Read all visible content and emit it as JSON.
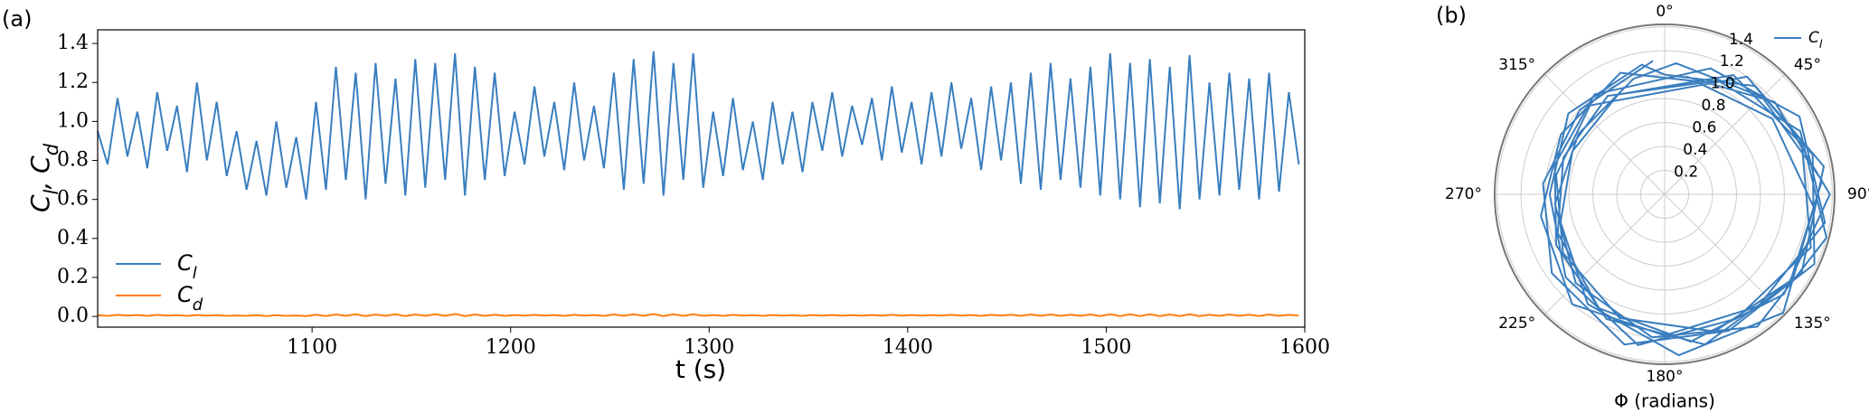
{
  "chart_data": [
    {
      "type": "line",
      "panel_label": "(a)",
      "xlabel": "t (s)",
      "ylabel": "C_l, C_d",
      "x": [
        992,
        997,
        1002,
        1007,
        1012,
        1017,
        1022,
        1027,
        1032,
        1037,
        1042,
        1047,
        1052,
        1057,
        1062,
        1067,
        1072,
        1077,
        1082,
        1087,
        1092,
        1097,
        1102,
        1107,
        1112,
        1117,
        1122,
        1127,
        1132,
        1137,
        1142,
        1147,
        1152,
        1157,
        1162,
        1167,
        1172,
        1177,
        1182,
        1187,
        1192,
        1197,
        1202,
        1207,
        1212,
        1217,
        1222,
        1227,
        1232,
        1237,
        1242,
        1247,
        1252,
        1257,
        1262,
        1267,
        1272,
        1277,
        1282,
        1287,
        1292,
        1297,
        1302,
        1307,
        1312,
        1317,
        1322,
        1327,
        1332,
        1337,
        1342,
        1347,
        1352,
        1357,
        1362,
        1367,
        1372,
        1377,
        1382,
        1387,
        1392,
        1397,
        1402,
        1407,
        1412,
        1417,
        1422,
        1427,
        1432,
        1437,
        1442,
        1447,
        1452,
        1457,
        1462,
        1467,
        1472,
        1477,
        1482,
        1487,
        1492,
        1497,
        1502,
        1507,
        1512,
        1517,
        1522,
        1527,
        1532,
        1537,
        1542,
        1547,
        1552,
        1557,
        1562,
        1567,
        1572,
        1577,
        1582,
        1587,
        1592,
        1597
      ],
      "series": [
        {
          "name": "C_l",
          "color": "#3a7ebf",
          "values": [
            0.95,
            0.78,
            1.12,
            0.82,
            1.05,
            0.76,
            1.15,
            0.85,
            1.08,
            0.74,
            1.2,
            0.8,
            1.1,
            0.72,
            0.95,
            0.65,
            0.9,
            0.62,
            1.0,
            0.66,
            0.92,
            0.6,
            1.1,
            0.65,
            1.28,
            0.7,
            1.25,
            0.6,
            1.3,
            0.68,
            1.22,
            0.62,
            1.32,
            0.66,
            1.3,
            0.7,
            1.35,
            0.62,
            1.28,
            0.7,
            1.25,
            0.72,
            1.05,
            0.78,
            1.18,
            0.82,
            1.1,
            0.75,
            1.2,
            0.8,
            1.08,
            0.76,
            1.25,
            0.65,
            1.32,
            0.68,
            1.36,
            0.62,
            1.3,
            0.7,
            1.35,
            0.66,
            1.05,
            0.72,
            1.12,
            0.75,
            1.0,
            0.7,
            1.1,
            0.78,
            1.05,
            0.74,
            1.1,
            0.85,
            1.15,
            0.82,
            1.08,
            0.88,
            1.12,
            0.8,
            1.18,
            0.84,
            1.1,
            0.78,
            1.15,
            0.82,
            1.2,
            0.86,
            1.12,
            0.75,
            1.18,
            0.8,
            1.2,
            0.68,
            1.25,
            0.65,
            1.3,
            0.7,
            1.22,
            0.66,
            1.28,
            0.62,
            1.35,
            0.6,
            1.3,
            0.56,
            1.32,
            0.58,
            1.28,
            0.55,
            1.34,
            0.6,
            1.2,
            0.62,
            1.25,
            0.65,
            1.22,
            0.6,
            1.25,
            0.64,
            1.15,
            0.78
          ]
        },
        {
          "name": "C_d",
          "color": "#ff7f0e",
          "values": [
            0.006,
            0.003,
            0.008,
            0.004,
            0.007,
            0.003,
            0.008,
            0.004,
            0.006,
            0.003,
            0.007,
            0.004,
            0.006,
            0.003,
            0.005,
            0.003,
            0.006,
            0.002,
            0.006,
            0.003,
            0.005,
            0.002,
            0.009,
            0.002,
            0.01,
            0.003,
            0.011,
            0.002,
            0.01,
            0.003,
            0.011,
            0.002,
            0.01,
            0.003,
            0.011,
            0.003,
            0.012,
            0.002,
            0.01,
            0.003,
            0.009,
            0.003,
            0.007,
            0.004,
            0.008,
            0.004,
            0.007,
            0.003,
            0.008,
            0.004,
            0.007,
            0.003,
            0.01,
            0.003,
            0.011,
            0.003,
            0.012,
            0.002,
            0.011,
            0.003,
            0.011,
            0.003,
            0.007,
            0.003,
            0.008,
            0.004,
            0.006,
            0.003,
            0.007,
            0.004,
            0.006,
            0.003,
            0.007,
            0.004,
            0.007,
            0.004,
            0.006,
            0.004,
            0.007,
            0.004,
            0.008,
            0.004,
            0.007,
            0.004,
            0.007,
            0.004,
            0.008,
            0.004,
            0.007,
            0.003,
            0.008,
            0.004,
            0.009,
            0.003,
            0.01,
            0.003,
            0.01,
            0.003,
            0.009,
            0.003,
            0.01,
            0.002,
            0.011,
            0.002,
            0.011,
            0.002,
            0.011,
            0.002,
            0.01,
            0.002,
            0.011,
            0.002,
            0.009,
            0.003,
            0.01,
            0.003,
            0.009,
            0.002,
            0.01,
            0.003,
            0.008,
            0.004
          ]
        }
      ],
      "xlim": [
        992,
        1600
      ],
      "xticks": [
        1100,
        1200,
        1300,
        1400,
        1500,
        1600
      ],
      "ylim": [
        -0.055,
        1.47
      ],
      "yticks": [
        {
          "value": 0,
          "label": "0.0"
        },
        0.2,
        0.4,
        0.6,
        0.8,
        {
          "value": 1,
          "label": "1.0"
        },
        1.2,
        1.4
      ],
      "grid": false,
      "legend": "lower left"
    },
    {
      "type": "polar",
      "panel_label": "(b)",
      "xlabel": "Φ (radians)",
      "theta": [
        10,
        50,
        90,
        130,
        170,
        210,
        250,
        290,
        330,
        25,
        65,
        105,
        145,
        185,
        225,
        265,
        305,
        345,
        5,
        45,
        85,
        125,
        165,
        205,
        245,
        285,
        325,
        20,
        60,
        100,
        140,
        180,
        220,
        260,
        300,
        340,
        15,
        55,
        95,
        135,
        175,
        215,
        255,
        295,
        335,
        30,
        70,
        110,
        150,
        190,
        230,
        270,
        310,
        350,
        0,
        40,
        80,
        120,
        160,
        200,
        240,
        280,
        320,
        35,
        75,
        115,
        155,
        195,
        235,
        275,
        315,
        355
      ],
      "series": [
        {
          "name": "C_l",
          "color": "#3a7ebf",
          "values": [
            1.0,
            1.2,
            1.38,
            1.3,
            1.25,
            1.1,
            0.95,
            0.9,
            0.95,
            1.05,
            1.25,
            1.4,
            1.35,
            1.2,
            1.05,
            0.92,
            0.88,
            1.0,
            1.1,
            1.15,
            1.32,
            1.28,
            1.3,
            1.15,
            1.0,
            0.95,
            1.02,
            1.12,
            1.3,
            1.36,
            1.22,
            1.18,
            1.2,
            1.05,
            1.0,
            1.08,
            0.98,
            1.1,
            1.25,
            1.4,
            1.35,
            1.12,
            0.9,
            0.85,
            0.92,
            1.15,
            1.22,
            1.3,
            1.2,
            1.28,
            1.08,
            0.96,
            1.05,
            1.1,
            1.0,
            1.18,
            1.35,
            1.32,
            1.22,
            1.1,
            0.98,
            0.92,
            0.97,
            1.2,
            1.28,
            1.38,
            1.26,
            1.3,
            1.15,
            1.02,
            1.0,
            1.12
          ]
        }
      ],
      "rlim": [
        0,
        1.42
      ],
      "rticks": [
        0.2,
        0.4,
        0.6,
        0.8,
        {
          "value": 1,
          "label": "1.0"
        },
        1.2,
        1.4
      ],
      "thetaticks": [
        {
          "value": 0,
          "label": "0°"
        },
        {
          "value": 45,
          "label": "45°"
        },
        {
          "value": 90,
          "label": "90°"
        },
        {
          "value": 135,
          "label": "135°"
        },
        {
          "value": 180,
          "label": "180°"
        },
        {
          "value": 225,
          "label": "225°"
        },
        {
          "value": 270,
          "label": "270°"
        },
        {
          "value": 315,
          "label": "315°"
        }
      ],
      "grid": true,
      "legend": "upper right"
    }
  ]
}
